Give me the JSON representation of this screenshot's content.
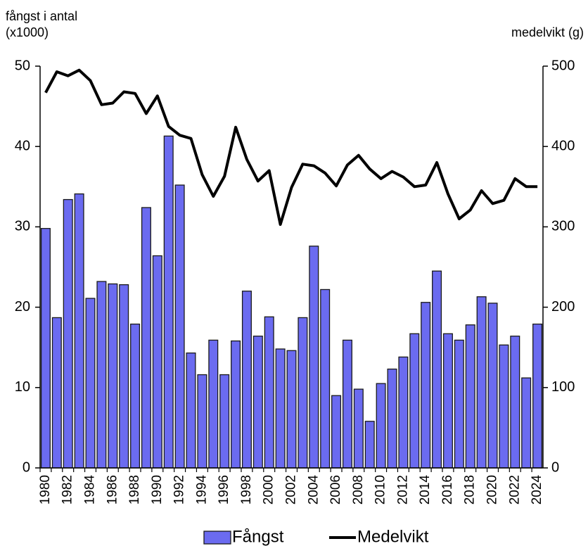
{
  "chart_data": {
    "type": "bar-line",
    "ylabel": [
      "fångst i antal",
      "(x1000)"
    ],
    "y2label": "medelvikt  (g)",
    "categories": [
      "1980",
      null,
      "1982",
      null,
      "1984",
      null,
      "1986",
      null,
      "1988",
      null,
      "1990",
      null,
      "1992",
      null,
      "1994",
      null,
      "1996",
      null,
      "1998",
      null,
      "2000",
      null,
      "2002",
      null,
      "2004",
      null,
      "2006",
      null,
      "2008",
      null,
      "2010",
      null,
      "2012",
      null,
      "2014",
      null,
      "2016",
      null,
      "2018",
      null,
      "2020",
      null,
      "2022",
      null,
      "2024"
    ],
    "series": [
      {
        "name": "Fångst",
        "type": "bar",
        "color": "#6b6bf0",
        "axis": "y",
        "values": [
          29.8,
          18.7,
          33.4,
          34.1,
          21.1,
          23.2,
          22.9,
          22.8,
          17.9,
          32.4,
          26.4,
          41.3,
          35.2,
          14.3,
          11.6,
          15.9,
          11.6,
          15.8,
          22.0,
          16.4,
          18.8,
          14.8,
          14.6,
          18.7,
          27.6,
          22.2,
          9.0,
          15.9,
          9.8,
          5.8,
          10.5,
          12.3,
          13.8,
          16.7,
          20.6,
          24.5,
          16.7,
          15.9,
          17.8,
          21.3,
          20.5,
          15.3,
          16.4,
          11.2,
          17.9
        ]
      },
      {
        "name": "Medelvikt",
        "type": "line",
        "color": "#000000",
        "axis": "y2",
        "values": [
          467,
          493,
          488,
          495,
          482,
          452,
          454,
          468,
          466,
          441,
          463,
          425,
          414,
          410,
          365,
          338,
          363,
          424,
          384,
          357,
          370,
          303,
          349,
          378,
          376,
          367,
          351,
          377,
          389,
          372,
          360,
          369,
          362,
          350,
          352,
          380,
          341,
          310,
          321,
          345,
          329,
          333,
          360,
          350,
          350
        ]
      }
    ],
    "ylim": [
      0,
      50
    ],
    "yticks": [
      0,
      10,
      20,
      30,
      40,
      50
    ],
    "y2lim": [
      0,
      500
    ],
    "y2ticks": [
      0,
      100,
      200,
      300,
      400,
      500
    ],
    "legend": "bottom"
  }
}
